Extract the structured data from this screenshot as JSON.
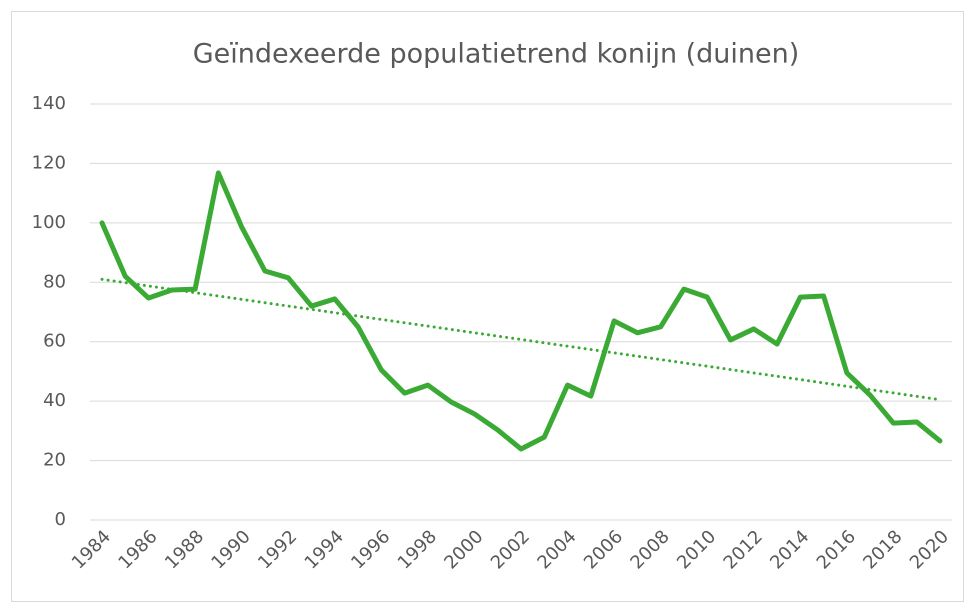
{
  "chart_data": {
    "type": "line",
    "title": "Geïndexeerde populatietrend konijn (duinen)",
    "x": [
      1984,
      1985,
      1986,
      1987,
      1988,
      1989,
      1990,
      1991,
      1992,
      1993,
      1994,
      1995,
      1996,
      1997,
      1998,
      1999,
      2000,
      2001,
      2002,
      2003,
      2004,
      2005,
      2006,
      2007,
      2008,
      2009,
      2010,
      2011,
      2012,
      2013,
      2014,
      2015,
      2016,
      2017,
      2018,
      2019,
      2020
    ],
    "series": [
      {
        "name": "konijn",
        "color": "#3aaa35",
        "values": [
          100,
          82,
          74.7,
          77.4,
          77.7,
          116.8,
          98.6,
          83.8,
          81.5,
          72,
          74.4,
          65,
          50.5,
          42.7,
          45.4,
          39.7,
          35.7,
          30.3,
          23.9,
          27.9,
          45.4,
          41.7,
          67,
          63,
          65,
          77.7,
          75,
          60.6,
          64.3,
          59.2,
          75,
          75.4,
          49.5,
          42,
          32.6,
          33,
          26.6
        ]
      }
    ],
    "trendline": {
      "x": [
        1984,
        2020
      ],
      "values": [
        81,
        40.5
      ],
      "color": "#3aaa35",
      "style": "dotted"
    },
    "xlim": [
      1984,
      2020
    ],
    "xticks": [
      1984,
      1986,
      1988,
      1990,
      1992,
      1994,
      1996,
      1998,
      2000,
      2002,
      2004,
      2006,
      2008,
      2010,
      2012,
      2014,
      2016,
      2018,
      2020
    ],
    "ylim": [
      0,
      140
    ],
    "yticks": [
      0,
      20,
      40,
      60,
      80,
      100,
      120,
      140
    ],
    "grid": true
  }
}
